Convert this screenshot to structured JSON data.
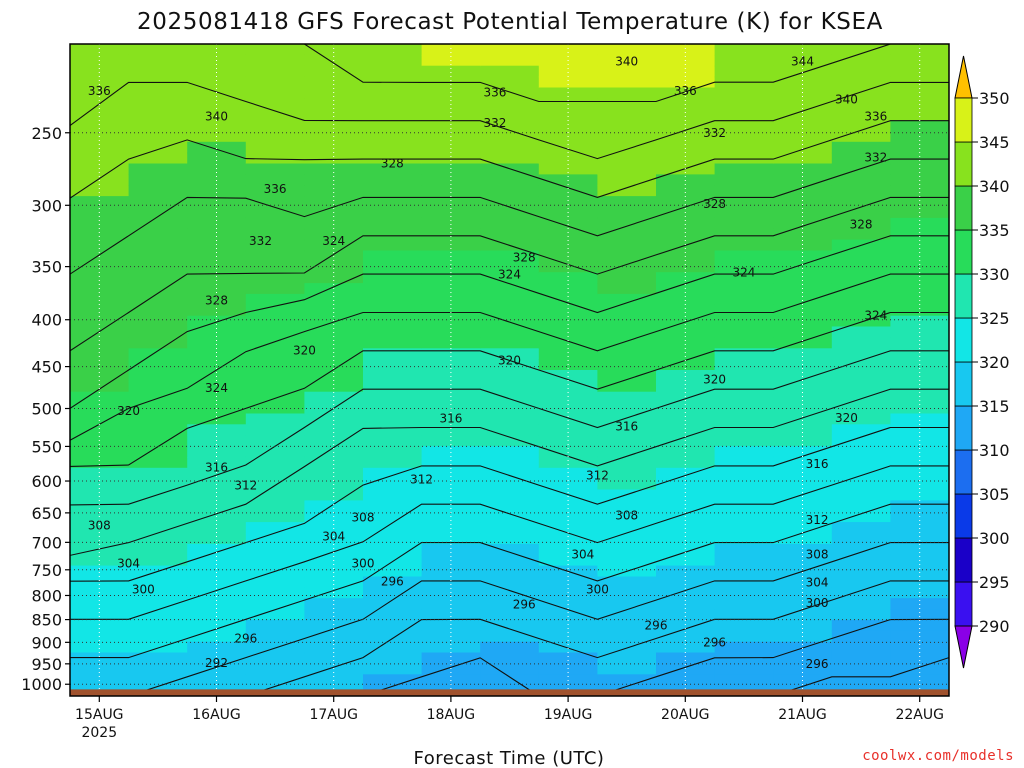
{
  "page": {
    "title": "2025081418 GFS Forecast Potential Temperature (K) for KSEA",
    "credit": "coolwx.com/models",
    "xlabel": "Forecast Time (UTC)"
  },
  "chart_data": {
    "type": "heatmap",
    "title": "2025081418 GFS Forecast Potential Temperature (K) for KSEA",
    "xlabel": "Forecast Time (UTC)",
    "ylabel": "",
    "y_scale": "log",
    "y_reversed": true,
    "ylim": [
      1030,
      200
    ],
    "y_ticks": [
      250,
      300,
      350,
      400,
      450,
      500,
      550,
      600,
      650,
      700,
      750,
      800,
      850,
      900,
      950,
      1000
    ],
    "x_start": "2025-08-14 18:00",
    "x_end": "2025-08-22 06:00",
    "x_ticks": [
      {
        "time": "2025-08-15 00:00",
        "label": "15AUG",
        "sublabel": "2025"
      },
      {
        "time": "2025-08-16 00:00",
        "label": "16AUG"
      },
      {
        "time": "2025-08-17 00:00",
        "label": "17AUG"
      },
      {
        "time": "2025-08-18 00:00",
        "label": "18AUG"
      },
      {
        "time": "2025-08-19 00:00",
        "label": "19AUG"
      },
      {
        "time": "2025-08-20 00:00",
        "label": "20AUG"
      },
      {
        "time": "2025-08-21 00:00",
        "label": "21AUG"
      },
      {
        "time": "2025-08-22 00:00",
        "label": "22AUG"
      }
    ],
    "grid": true,
    "ground_color": "#a0522d",
    "colorbar": {
      "levels": [
        290,
        295,
        300,
        305,
        310,
        315,
        320,
        325,
        330,
        335,
        340,
        345,
        350
      ],
      "colors": [
        "#8a00e6",
        "#3a10f0",
        "#1a00c8",
        "#0a3ae8",
        "#1c6ef0",
        "#1fa8f5",
        "#18c8f0",
        "#12e6e6",
        "#20e6b0",
        "#28dc5a",
        "#3ad048",
        "#88e21e",
        "#d8f218",
        "#fff018",
        "#ffc000"
      ],
      "placement": "right"
    },
    "series": [
      {
        "values": [
          {
            "time": "2025-08-14 18:00",
            "theta": [
              318,
              320,
              322,
              324,
              327,
              328,
              330,
              333,
              335,
              336,
              337,
              338,
              339,
              340,
              342,
              342,
              343,
              344
            ]
          },
          {
            "time": "2025-08-15 06:00",
            "theta": [
              318,
              320,
              322,
              324,
              326,
              328,
              330,
              331,
              333,
              335,
              336,
              337,
              338,
              339,
              340,
              341,
              342,
              343
            ]
          },
          {
            "time": "2025-08-15 18:00",
            "theta": [
              317,
              319,
              321,
              323,
              325,
              327,
              329,
              330,
              332,
              333,
              335,
              336,
              337,
              338,
              339,
              341,
              342,
              343
            ]
          },
          {
            "time": "2025-08-16 06:00",
            "theta": [
              316,
              318,
              320,
              322,
              324,
              326,
              328,
              329,
              331,
              332,
              334,
              336,
              337,
              338,
              340,
              341,
              343,
              344
            ]
          },
          {
            "time": "2025-08-16 18:00",
            "theta": [
              315,
              317,
              319,
              321,
              323,
              325,
              326,
              328,
              330,
              331,
              333,
              336,
              337,
              339,
              340,
              342,
              343,
              344
            ]
          },
          {
            "time": "2025-08-17 06:00",
            "theta": [
              314,
              316,
              318,
              320,
              322,
              323,
              325,
              326,
              328,
              330,
              332,
              334,
              336,
              338,
              340,
              342,
              344,
              345
            ]
          },
          {
            "time": "2025-08-17 18:00",
            "theta": [
              313,
              315,
              316,
              318,
              320,
              322,
              324,
              326,
              328,
              330,
              332,
              334,
              336,
              338,
              340,
              342,
              344,
              346
            ]
          },
          {
            "time": "2025-08-18 06:00",
            "theta": [
              313,
              314,
              316,
              318,
              320,
              322,
              324,
              326,
              328,
              330,
              332,
              334,
              336,
              338,
              340,
              342,
              344,
              346
            ]
          },
          {
            "time": "2025-08-18 18:00",
            "theta": [
              314,
              315,
              317,
              319,
              321,
              323,
              325,
              327,
              329,
              331,
              333,
              335,
              337,
              339,
              341,
              343,
              345,
              346
            ]
          },
          {
            "time": "2025-08-19 06:00",
            "theta": [
              314,
              316,
              318,
              320,
              322,
              324,
              326,
              328,
              330,
              332,
              334,
              336,
              338,
              340,
              342,
              343,
              345,
              346
            ]
          },
          {
            "time": "2025-08-19 18:00",
            "theta": [
              313,
              315,
              317,
              319,
              321,
              323,
              325,
              327,
              329,
              331,
              333,
              335,
              337,
              339,
              341,
              343,
              345,
              346
            ]
          },
          {
            "time": "2025-08-20 06:00",
            "theta": [
              313,
              314,
              316,
              318,
              320,
              322,
              324,
              326,
              328,
              330,
              332,
              334,
              336,
              338,
              340,
              342,
              344,
              345
            ]
          },
          {
            "time": "2025-08-20 18:00",
            "theta": [
              312,
              314,
              316,
              318,
              320,
              322,
              324,
              326,
              328,
              330,
              332,
              334,
              336,
              338,
              340,
              342,
              344,
              345
            ]
          },
          {
            "time": "2025-08-21 06:00",
            "theta": [
              311,
              313,
              315,
              317,
              319,
              321,
              323,
              325,
              327,
              329,
              331,
              333,
              335,
              337,
              339,
              341,
              343,
              345
            ]
          },
          {
            "time": "2025-08-21 18:00",
            "theta": [
              311,
              313,
              314,
              316,
              318,
              320,
              322,
              324,
              326,
              328,
              330,
              332,
              334,
              336,
              338,
              340,
              342,
              344
            ]
          },
          {
            "time": "2025-08-22 06:00",
            "theta": [
              310,
              312,
              314,
              316,
              318,
              320,
              322,
              324,
              326,
              328,
              330,
              332,
              334,
              336,
              338,
              340,
              342,
              344
            ]
          }
        ]
      }
    ],
    "contour_labels": [
      {
        "text": "336",
        "time": "2025-08-15 00:00",
        "p": 225
      },
      {
        "text": "340",
        "time": "2025-08-16 00:00",
        "p": 240
      },
      {
        "text": "340",
        "time": "2025-08-19 12:00",
        "p": 209
      },
      {
        "text": "344",
        "time": "2025-08-21 00:00",
        "p": 209
      },
      {
        "text": "336",
        "time": "2025-08-18 09:00",
        "p": 226
      },
      {
        "text": "336",
        "time": "2025-08-20 00:00",
        "p": 225
      },
      {
        "text": "340",
        "time": "2025-08-21 09:00",
        "p": 230
      },
      {
        "text": "336",
        "time": "2025-08-21 15:00",
        "p": 240
      },
      {
        "text": "332",
        "time": "2025-08-18 09:00",
        "p": 244
      },
      {
        "text": "332",
        "time": "2025-08-20 06:00",
        "p": 250
      },
      {
        "text": "332",
        "time": "2025-08-21 15:00",
        "p": 266
      },
      {
        "text": "328",
        "time": "2025-08-17 12:00",
        "p": 270
      },
      {
        "text": "336",
        "time": "2025-08-16 12:00",
        "p": 288
      },
      {
        "text": "328",
        "time": "2025-08-20 06:00",
        "p": 299
      },
      {
        "text": "328",
        "time": "2025-08-21 12:00",
        "p": 315
      },
      {
        "text": "332",
        "time": "2025-08-16 09:00",
        "p": 328
      },
      {
        "text": "324",
        "time": "2025-08-17 00:00",
        "p": 328
      },
      {
        "text": "328",
        "time": "2025-08-18 15:00",
        "p": 342
      },
      {
        "text": "324",
        "time": "2025-08-18 12:00",
        "p": 357
      },
      {
        "text": "324",
        "time": "2025-08-20 12:00",
        "p": 355
      },
      {
        "text": "328",
        "time": "2025-08-16 00:00",
        "p": 381
      },
      {
        "text": "324",
        "time": "2025-08-21 15:00",
        "p": 396
      },
      {
        "text": "320",
        "time": "2025-08-16 18:00",
        "p": 432
      },
      {
        "text": "320",
        "time": "2025-08-18 12:00",
        "p": 443
      },
      {
        "text": "324",
        "time": "2025-08-16 00:00",
        "p": 475
      },
      {
        "text": "320",
        "time": "2025-08-20 06:00",
        "p": 465
      },
      {
        "text": "320",
        "time": "2025-08-15 06:00",
        "p": 503
      },
      {
        "text": "316",
        "time": "2025-08-18 00:00",
        "p": 513
      },
      {
        "text": "316",
        "time": "2025-08-19 12:00",
        "p": 523
      },
      {
        "text": "320",
        "time": "2025-08-21 09:00",
        "p": 512
      },
      {
        "text": "316",
        "time": "2025-08-16 00:00",
        "p": 580
      },
      {
        "text": "312",
        "time": "2025-08-16 06:00",
        "p": 607
      },
      {
        "text": "312",
        "time": "2025-08-17 18:00",
        "p": 598
      },
      {
        "text": "312",
        "time": "2025-08-19 06:00",
        "p": 592
      },
      {
        "text": "316",
        "time": "2025-08-21 03:00",
        "p": 575
      },
      {
        "text": "308",
        "time": "2025-08-15 00:00",
        "p": 671
      },
      {
        "text": "308",
        "time": "2025-08-17 06:00",
        "p": 658
      },
      {
        "text": "308",
        "time": "2025-08-19 12:00",
        "p": 654
      },
      {
        "text": "312",
        "time": "2025-08-21 03:00",
        "p": 662
      },
      {
        "text": "304",
        "time": "2025-08-17 00:00",
        "p": 690
      },
      {
        "text": "304",
        "time": "2025-08-19 03:00",
        "p": 722
      },
      {
        "text": "308",
        "time": "2025-08-21 03:00",
        "p": 722
      },
      {
        "text": "304",
        "time": "2025-08-15 06:00",
        "p": 738
      },
      {
        "text": "300",
        "time": "2025-08-17 06:00",
        "p": 738
      },
      {
        "text": "304",
        "time": "2025-08-21 03:00",
        "p": 774
      },
      {
        "text": "296",
        "time": "2025-08-17 12:00",
        "p": 772
      },
      {
        "text": "300",
        "time": "2025-08-15 09:00",
        "p": 788
      },
      {
        "text": "300",
        "time": "2025-08-19 06:00",
        "p": 788
      },
      {
        "text": "300",
        "time": "2025-08-21 03:00",
        "p": 815
      },
      {
        "text": "296",
        "time": "2025-08-18 15:00",
        "p": 818
      },
      {
        "text": "296",
        "time": "2025-08-19 18:00",
        "p": 863
      },
      {
        "text": "296",
        "time": "2025-08-16 06:00",
        "p": 891
      },
      {
        "text": "296",
        "time": "2025-08-20 06:00",
        "p": 900
      },
      {
        "text": "292",
        "time": "2025-08-16 00:00",
        "p": 948
      },
      {
        "text": "296",
        "time": "2025-08-21 03:00",
        "p": 950
      }
    ]
  }
}
